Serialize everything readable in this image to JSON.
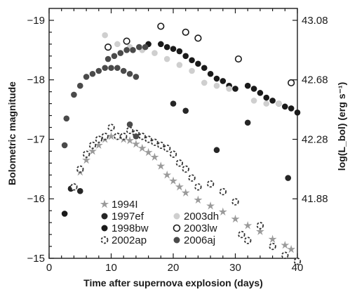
{
  "chart_data": {
    "type": "scatter",
    "xlabel": "Time after supernova explosion (days)",
    "ylabel": "Bolometric magnitude",
    "y2label": "log(L_bol) (erg s⁻¹)",
    "xlim": [
      0,
      40
    ],
    "ylim": [
      -15,
      -19.2
    ],
    "xticks": [
      0,
      10,
      20,
      30,
      40
    ],
    "yticks": [
      -19,
      -18,
      -17,
      -16,
      -15
    ],
    "y2ticks": [
      {
        "mag": -19.0,
        "label": "43.08"
      },
      {
        "mag": -18.0,
        "label": "42.68"
      },
      {
        "mag": -17.0,
        "label": "42.28"
      },
      {
        "mag": -16.0,
        "label": "41.88"
      }
    ],
    "grid": false,
    "legend_position": "bottom-left",
    "legend_columns": 2,
    "series": [
      {
        "name": "1994I",
        "color": "#9a9a9a",
        "marker": "star",
        "points": [
          [
            4,
            -16.2
          ],
          [
            5,
            -16.45
          ],
          [
            6,
            -16.65
          ],
          [
            7,
            -16.8
          ],
          [
            8,
            -16.9
          ],
          [
            9,
            -17.0
          ],
          [
            10,
            -17.05
          ],
          [
            11,
            -17.05
          ],
          [
            12,
            -17.0
          ],
          [
            13,
            -16.98
          ],
          [
            14,
            -16.92
          ],
          [
            15,
            -16.85
          ],
          [
            16,
            -16.78
          ],
          [
            17,
            -16.7
          ],
          [
            18,
            -16.55
          ],
          [
            19,
            -16.4
          ],
          [
            20,
            -16.3
          ],
          [
            21,
            -16.2
          ],
          [
            22,
            -16.1
          ],
          [
            24,
            -15.98
          ],
          [
            26,
            -15.88
          ],
          [
            28,
            -15.78
          ],
          [
            30,
            -15.66
          ],
          [
            32,
            -15.55
          ],
          [
            34,
            -15.45
          ],
          [
            36,
            -15.32
          ],
          [
            38,
            -15.22
          ],
          [
            39,
            -15.15
          ]
        ]
      },
      {
        "name": "1997ef",
        "color": "#262626",
        "marker": "circle",
        "points": [
          [
            3.5,
            -16.17
          ],
          [
            5,
            -16.13
          ],
          [
            20,
            -17.6
          ],
          [
            22,
            -17.48
          ],
          [
            27,
            -16.82
          ],
          [
            32,
            -17.28
          ],
          [
            38.5,
            -16.35
          ]
        ]
      },
      {
        "name": "1998bw",
        "color": "#1a1a1a",
        "marker": "circle",
        "points": [
          [
            2.5,
            -15.75
          ],
          [
            16,
            -18.6
          ],
          [
            18,
            -18.6
          ],
          [
            19,
            -18.55
          ],
          [
            20,
            -18.52
          ],
          [
            21,
            -18.48
          ],
          [
            22,
            -18.4
          ],
          [
            23,
            -18.33
          ],
          [
            24,
            -18.27
          ],
          [
            25,
            -18.2
          ],
          [
            26,
            -18.1
          ],
          [
            27,
            -18.02
          ],
          [
            28,
            -17.98
          ],
          [
            29,
            -17.9
          ],
          [
            30,
            -17.85
          ],
          [
            32,
            -17.9
          ],
          [
            33,
            -17.85
          ],
          [
            34,
            -17.78
          ],
          [
            35,
            -17.7
          ],
          [
            36,
            -17.65
          ],
          [
            37,
            -17.6
          ],
          [
            38,
            -17.55
          ],
          [
            39,
            -17.52
          ],
          [
            40,
            -17.45
          ]
        ]
      },
      {
        "name": "2002ap",
        "color": "#333333",
        "marker": "dashed-circle",
        "points": [
          [
            4,
            -16.2
          ],
          [
            5,
            -16.5
          ],
          [
            6,
            -16.75
          ],
          [
            7,
            -16.9
          ],
          [
            8,
            -17.0
          ],
          [
            9,
            -17.05
          ],
          [
            10,
            -17.2
          ],
          [
            11,
            -17.05
          ],
          [
            12,
            -17.05
          ],
          [
            13,
            -17.15
          ],
          [
            14,
            -17.1
          ],
          [
            15,
            -17.05
          ],
          [
            16,
            -17.0
          ],
          [
            17,
            -16.95
          ],
          [
            18,
            -16.9
          ],
          [
            19,
            -16.85
          ],
          [
            20,
            -16.75
          ],
          [
            21,
            -16.6
          ],
          [
            22,
            -16.5
          ],
          [
            23,
            -16.35
          ],
          [
            24,
            -16.2
          ],
          [
            26,
            -16.25
          ],
          [
            28,
            -16.12
          ],
          [
            30,
            -15.95
          ],
          [
            31,
            -15.4
          ],
          [
            32,
            -15.3
          ],
          [
            34,
            -15.55
          ],
          [
            36,
            -15.2
          ],
          [
            38,
            -15.05
          ],
          [
            40,
            -14.95
          ]
        ]
      },
      {
        "name": "2003dh",
        "color": "#cfcfcf",
        "marker": "circle",
        "points": [
          [
            9,
            -18.75
          ],
          [
            11,
            -18.6
          ],
          [
            13,
            -18.55
          ],
          [
            15,
            -18.5
          ],
          [
            17,
            -18.45
          ],
          [
            19,
            -18.35
          ],
          [
            21,
            -18.25
          ],
          [
            23,
            -18.15
          ],
          [
            25,
            -17.95
          ],
          [
            27,
            -17.9
          ],
          [
            29,
            -17.85
          ],
          [
            33,
            -17.65
          ],
          [
            35,
            -17.6
          ],
          [
            37,
            -17.6
          ]
        ]
      },
      {
        "name": "2003lw",
        "color": "#1a1a1a",
        "marker": "open-circle",
        "points": [
          [
            9.5,
            -18.55
          ],
          [
            12.5,
            -18.65
          ],
          [
            18,
            -18.9
          ],
          [
            22,
            -18.8
          ],
          [
            24,
            -18.7
          ],
          [
            30.5,
            -18.35
          ],
          [
            39,
            -17.95
          ]
        ]
      },
      {
        "name": "2006aj",
        "color": "#4a4a4a",
        "marker": "circle",
        "points": [
          [
            2.5,
            -16.9
          ],
          [
            2.8,
            -17.35
          ],
          [
            4,
            -17.75
          ],
          [
            5,
            -17.9
          ],
          [
            6,
            -18.05
          ],
          [
            7,
            -18.1
          ],
          [
            8,
            -18.15
          ],
          [
            9,
            -18.2
          ],
          [
            10,
            -18.2
          ],
          [
            11,
            -18.2
          ],
          [
            12,
            -18.15
          ],
          [
            13,
            -18.1
          ],
          [
            14,
            -18.05
          ],
          [
            9.5,
            -18.35
          ],
          [
            10.5,
            -18.4
          ],
          [
            11.5,
            -18.45
          ],
          [
            12.5,
            -18.5
          ],
          [
            13.5,
            -18.5
          ],
          [
            14.5,
            -18.55
          ],
          [
            15.5,
            -18.55
          ],
          [
            13,
            -17.25
          ],
          [
            14,
            -17.05
          ]
        ]
      }
    ]
  }
}
